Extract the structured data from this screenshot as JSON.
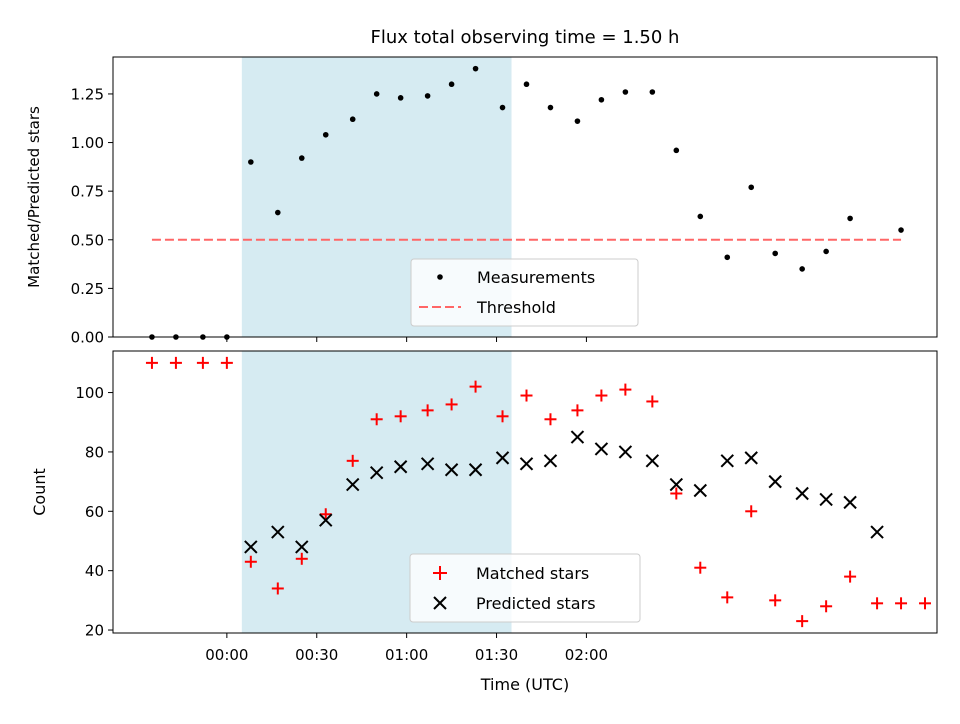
{
  "chart_data": [
    {
      "type": "scatter",
      "title": "Flux total observing time = 1.50 h",
      "xlabel": "",
      "ylabel": "Matched/Predicted stars",
      "x_unit": "minutes from 00:00 UTC",
      "xlim": [
        -38,
        237
      ],
      "ylim": [
        0,
        1.44
      ],
      "yticks": [
        "0.00",
        "0.25",
        "0.50",
        "0.75",
        "1.00",
        "1.25"
      ],
      "shaded_region": {
        "x": [
          5,
          95
        ],
        "color": "#add8e6"
      },
      "threshold": {
        "name": "Threshold",
        "value": 0.5,
        "x": [
          -25,
          225
        ],
        "color": "#ff6666",
        "style": "dashed"
      },
      "legend_position": "lower center",
      "series": [
        {
          "name": "Measurements",
          "marker": "dot",
          "color": "#000000",
          "x": [
            -25,
            -17,
            -8,
            0,
            8,
            17,
            25,
            33,
            42,
            50,
            58,
            67,
            75,
            83,
            92,
            100,
            108,
            117,
            125,
            133,
            142,
            150,
            158,
            167,
            175,
            183,
            192,
            200,
            208,
            225
          ],
          "y": [
            0,
            0,
            0,
            0,
            0.9,
            0.64,
            0.92,
            1.04,
            1.12,
            1.25,
            1.23,
            1.24,
            1.3,
            1.38,
            1.18,
            1.3,
            1.18,
            1.11,
            1.22,
            1.26,
            1.26,
            0.96,
            0.62,
            0.41,
            0.77,
            0.43,
            0.35,
            0.44,
            0.61,
            0.55
          ]
        }
      ]
    },
    {
      "type": "scatter",
      "title": "",
      "xlabel": "Time (UTC)",
      "ylabel": "Count",
      "x_unit": "minutes from 00:00 UTC",
      "xlim": [
        -38,
        237
      ],
      "ylim": [
        19,
        114
      ],
      "yticks": [
        "20",
        "40",
        "60",
        "80",
        "100"
      ],
      "xtick_labels": [
        "00:00",
        "00:30",
        "01:00",
        "01:30",
        "02:00"
      ],
      "xtick_values": [
        0,
        30,
        60,
        90,
        120
      ],
      "shaded_region": {
        "x": [
          5,
          95
        ],
        "color": "#add8e6"
      },
      "legend_position": "lower center",
      "series": [
        {
          "name": "Matched stars",
          "marker": "plus",
          "color": "#ff0000",
          "x": [
            -25,
            -17,
            -8,
            0,
            8,
            17,
            25,
            33,
            42,
            50,
            58,
            67,
            75,
            83,
            92,
            100,
            108,
            117,
            125,
            133,
            142,
            150,
            158,
            167,
            175,
            183,
            192,
            200,
            208,
            217,
            225,
            233
          ],
          "y": [
            110,
            110,
            110,
            110,
            43,
            34,
            44,
            59,
            77,
            91,
            92,
            94,
            96,
            102,
            92,
            99,
            91,
            94,
            99,
            101,
            97,
            66,
            41,
            31,
            60,
            30,
            23,
            28,
            38,
            29,
            29,
            29
          ]
        },
        {
          "name": "Predicted stars",
          "marker": "x",
          "color": "#000000",
          "x": [
            8,
            17,
            25,
            33,
            42,
            50,
            58,
            67,
            75,
            83,
            92,
            100,
            108,
            117,
            125,
            133,
            142,
            150,
            158,
            167,
            175,
            183,
            192,
            200,
            208,
            217
          ],
          "y": [
            48,
            53,
            48,
            57,
            69,
            73,
            75,
            76,
            74,
            74,
            78,
            76,
            77,
            85,
            81,
            80,
            77,
            69,
            67,
            77,
            78,
            70,
            66,
            64,
            63,
            53
          ]
        }
      ]
    }
  ]
}
